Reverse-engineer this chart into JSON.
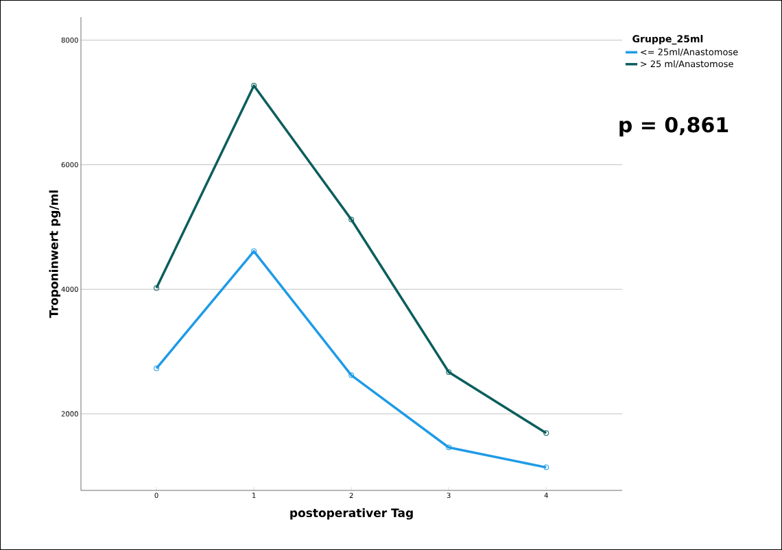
{
  "chart_data": {
    "type": "line",
    "xlabel": "postoperativer Tag",
    "ylabel": "Troponinwert pg/ml",
    "legend_title": "Gruppe_25ml",
    "categories": [
      "0",
      "1",
      "2",
      "3",
      "4"
    ],
    "series": [
      {
        "name": "<= 25ml/Anastomose",
        "color": "#1f9be6",
        "values": [
          2730,
          4610,
          2620,
          1460,
          1140
        ]
      },
      {
        "name": "> 25 ml/Anastomose",
        "color": "#0b5e5c",
        "values": [
          4020,
          7270,
          5120,
          2670,
          1690
        ]
      }
    ],
    "ylim": [
      770,
      8370
    ],
    "yticks": [
      2000,
      4000,
      6000,
      8000
    ],
    "grid": "y",
    "legend": "top right",
    "marker": "circle",
    "line_style": "solid",
    "annotations": [
      "**p = 0,861**"
    ]
  }
}
